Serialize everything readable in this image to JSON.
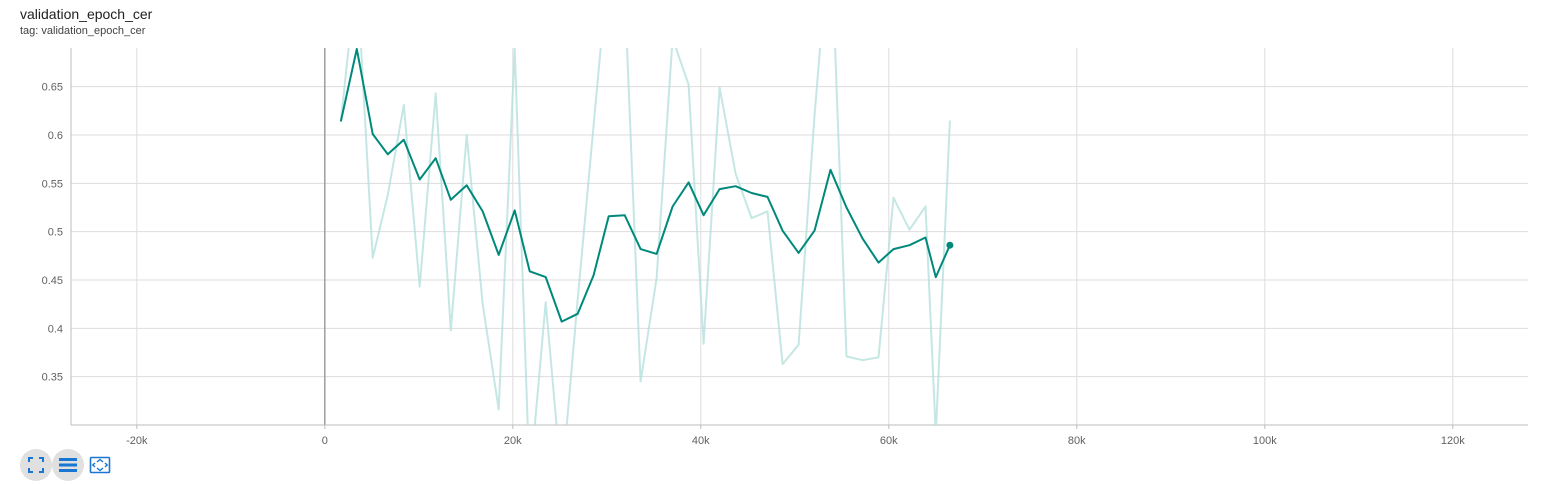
{
  "card": {
    "title": "validation_epoch_cer",
    "tag": "tag: validation_epoch_cer"
  },
  "toolbar": {
    "buttons": [
      {
        "name": "fullscreen-icon",
        "active": true
      },
      {
        "name": "log-scale-icon",
        "active": true
      },
      {
        "name": "fit-domain-icon",
        "active": false
      }
    ]
  },
  "colors": {
    "smoothed": "#00897b",
    "raw": "#b2dfdb",
    "grid": "#dddddd",
    "zero_axis": "#9e9e9e",
    "tick_text": "#616161",
    "icon_blue": "#1976d2"
  },
  "chart_data": {
    "type": "line",
    "xlim": [
      -27000,
      128000
    ],
    "ylim": [
      0.3,
      0.69
    ],
    "x_ticks": [
      -20000,
      0,
      20000,
      40000,
      60000,
      80000,
      100000,
      120000
    ],
    "x_tick_labels": [
      "-20k",
      "0",
      "20k",
      "40k",
      "60k",
      "80k",
      "100k",
      "120k"
    ],
    "y_ticks": [
      0.35,
      0.4,
      0.45,
      0.5,
      0.55,
      0.6,
      0.65
    ],
    "y_tick_labels": [
      "0.35",
      "0.4",
      "0.45",
      "0.5",
      "0.55",
      "0.6",
      "0.65"
    ],
    "grid": true,
    "series": [
      {
        "role": "raw",
        "x": [
          1700,
          3400,
          5100,
          6700,
          8400,
          10100,
          11800,
          13400,
          15100,
          16800,
          18500,
          20200,
          21800,
          23500,
          25200,
          26900,
          28600,
          30200,
          31900,
          33600,
          35300,
          37000,
          38700,
          40300,
          42000,
          43700,
          45400,
          47100,
          48700,
          50400,
          52100,
          53800,
          55500,
          57200,
          58900,
          60500,
          62200,
          63900,
          65000,
          66500
        ],
        "y": [
          0.614,
          0.77,
          0.473,
          0.538,
          0.631,
          0.443,
          0.643,
          0.398,
          0.6,
          0.425,
          0.316,
          0.69,
          0.24,
          0.427,
          0.24,
          0.43,
          0.61,
          0.78,
          0.75,
          0.345,
          0.452,
          0.7,
          0.652,
          0.384,
          0.649,
          0.56,
          0.514,
          0.521,
          0.363,
          0.383,
          0.62,
          0.82,
          0.371,
          0.367,
          0.37,
          0.535,
          0.502,
          0.526,
          0.29,
          0.615
        ]
      },
      {
        "role": "smoothed",
        "x": [
          1700,
          3400,
          5100,
          6700,
          8400,
          10100,
          11800,
          13400,
          15100,
          16800,
          18500,
          20200,
          21800,
          23500,
          25200,
          26900,
          28600,
          30200,
          31900,
          33600,
          35300,
          37000,
          38700,
          40300,
          42000,
          43700,
          45400,
          47100,
          48700,
          50400,
          52100,
          53800,
          55500,
          57200,
          58900,
          60500,
          62200,
          63900,
          65000,
          66500
        ],
        "y": [
          0.614,
          0.689,
          0.601,
          0.58,
          0.595,
          0.554,
          0.576,
          0.533,
          0.548,
          0.521,
          0.476,
          0.522,
          0.459,
          0.453,
          0.407,
          0.415,
          0.455,
          0.516,
          0.517,
          0.482,
          0.477,
          0.526,
          0.551,
          0.517,
          0.544,
          0.547,
          0.54,
          0.536,
          0.501,
          0.478,
          0.501,
          0.564,
          0.525,
          0.493,
          0.468,
          0.482,
          0.486,
          0.494,
          0.453,
          0.486
        ]
      }
    ]
  }
}
